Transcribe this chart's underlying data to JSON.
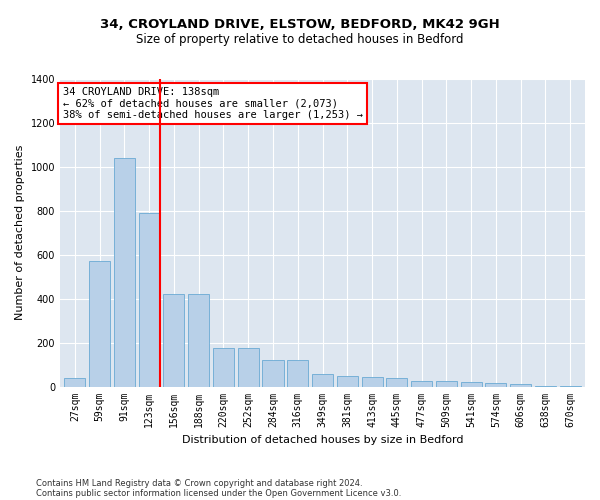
{
  "title_line1": "34, CROYLAND DRIVE, ELSTOW, BEDFORD, MK42 9GH",
  "title_line2": "Size of property relative to detached houses in Bedford",
  "xlabel": "Distribution of detached houses by size in Bedford",
  "ylabel": "Number of detached properties",
  "footer_line1": "Contains HM Land Registry data © Crown copyright and database right 2024.",
  "footer_line2": "Contains public sector information licensed under the Open Government Licence v3.0.",
  "categories": [
    "27sqm",
    "59sqm",
    "91sqm",
    "123sqm",
    "156sqm",
    "188sqm",
    "220sqm",
    "252sqm",
    "284sqm",
    "316sqm",
    "349sqm",
    "381sqm",
    "413sqm",
    "445sqm",
    "477sqm",
    "509sqm",
    "541sqm",
    "574sqm",
    "606sqm",
    "638sqm",
    "670sqm"
  ],
  "values": [
    40,
    570,
    1040,
    790,
    420,
    420,
    175,
    175,
    120,
    120,
    55,
    50,
    45,
    40,
    25,
    25,
    20,
    15,
    10,
    3,
    3
  ],
  "bar_color": "#b8d0e8",
  "bar_edge_color": "#6aaad4",
  "vline_color": "red",
  "vline_x": 3.45,
  "annotation_line1": "34 CROYLAND DRIVE: 138sqm",
  "annotation_line2": "← 62% of detached houses are smaller (2,073)",
  "annotation_line3": "38% of semi-detached houses are larger (1,253) →",
  "ylim": [
    0,
    1400
  ],
  "yticks": [
    0,
    200,
    400,
    600,
    800,
    1000,
    1200,
    1400
  ],
  "plot_bg_color": "#dde6f0",
  "grid_color": "#ffffff",
  "title_fontsize": 9.5,
  "subtitle_fontsize": 8.5,
  "axis_label_fontsize": 8,
  "tick_fontsize": 7,
  "footer_fontsize": 6,
  "annotation_fontsize": 7.5
}
